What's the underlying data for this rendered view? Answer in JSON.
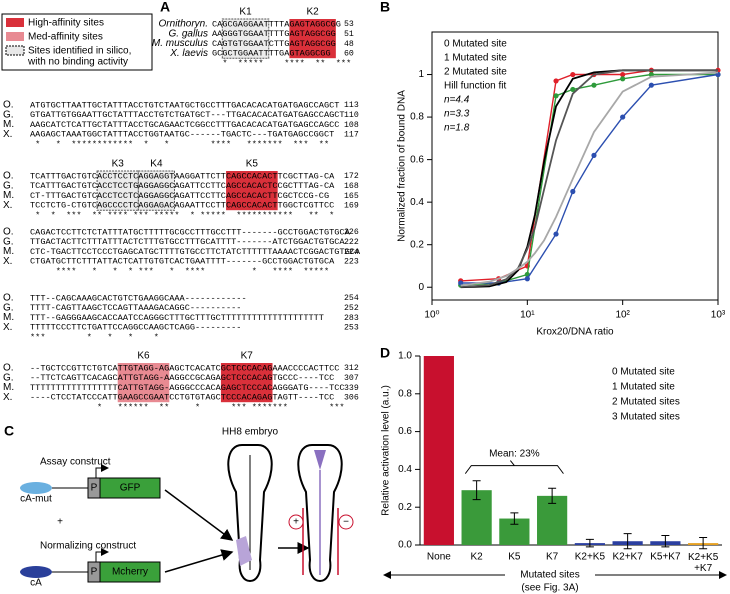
{
  "panel_a": {
    "label": "A",
    "legend": [
      "High-affinity sites",
      "Med-affinity sites",
      [
        "Sites identified in silico,",
        "with no binding activity"
      ]
    ],
    "header_species": [
      "Ornithoryn.",
      "G. gallus",
      "M. musculus",
      "X. laevis"
    ],
    "species": [
      "O.",
      "G.",
      "M.",
      "X."
    ],
    "sites": [
      "K1",
      "K2",
      "K3",
      "K4",
      "K5",
      "K6",
      "K7"
    ],
    "blocks": [
      {
        "rows": [
          {
            "seq": "CAGCGAGGAATTTTAGAGTAGGCGG",
            "pos": 53
          },
          {
            "seq": "AAGGGTGGAATTTTGAGTAGGCGG",
            "pos": 51
          },
          {
            "seq": "CAGTGTGGAATCTTGAGTAGGCGG",
            "pos": 48
          },
          {
            "seq": "GCGCTGGAATTTTGAGTAGGCGG",
            "pos": 60
          }
        ],
        "stars": "  *  *****    ****  **  ***"
      },
      {
        "rows": [
          {
            "seq": "ATGTGCTTAATTGCTATTTACCTGTCTAATGCTGCCTTTGACACACATGATGAGCCAGCT",
            "pos": 113
          },
          {
            "seq": "GTGATTGTGGAATTGCTATTTACCTGTCTGATGCT---TTGACACACATGATGAGCCAGCT",
            "pos": 110
          },
          {
            "seq": "AAGCATCTCATTGCTATTTACCTGCAGAACTCGGCCTTTGACACACATGATGAGCCAGCC",
            "pos": 108
          },
          {
            "seq": "AAGAGCTAAATGGCTATTTACCTGGTAATGC------TGACTC---TGATGAGCCGGCT",
            "pos": 117
          }
        ],
        "stars": " *   *  ************  *   *        ****   *******  ***  **"
      },
      {
        "rows": [
          {
            "seq": "TCATTTGACTGTCACCTCCTCAGGAGGTAAGGATTCTTCAGCCACACTTCGCTTAG-CA",
            "pos": 172
          },
          {
            "seq": "TCATTTGACTGTCACCTCCTGAGGAGGCAGATTCCTTCAGCCACACTCCGCTTTAG-CA",
            "pos": 168
          },
          {
            "seq": "CT-TTTGACTGTCACCTCCTCAGGAGGCAGATTCCTTCAGCCACACTTCGCTCCG-CG",
            "pos": 165
          },
          {
            "seq": "TCCTCTG-CTGTCAGCCCCTCAGGAGACAGAATTCCTTCAGCCACACTTGGCTCGTTCC",
            "pos": 169
          }
        ],
        "stars": " *  *  ***  ** **** *** *****  * *****  ***********   **  *"
      },
      {
        "rows": [
          {
            "seq": "CAGACTCCTTCTCTATTTATGCTTTTTGCGCCTTTGCCTTT-------GCCTGGACTGTGCA",
            "pos": 226
          },
          {
            "seq": "TTGACTACTTCTTTATTTACTCTTTGTGCCTTTGCATTTT-------ATCTGGACTGTGCA",
            "pos": 222
          },
          {
            "seq": "CTC-TGACTTCCTCCCTGAGCATGCTTTTGTGCCTTCTATCTTTTTTAAAACTCGGACTGTGCA",
            "pos": 224
          },
          {
            "seq": "CTGATGCTTCTTTATTACTCATTGTGTCACTGAATTTT-------GCCTGGACTGTGCA",
            "pos": 223
          }
        ],
        "stars": "     ****   *   *  * ***   *  ****         *   ****  *****"
      },
      {
        "rows": [
          {
            "seq": "TTT--CAGCAAAGCACTGTCTGAAGGCAAA------------",
            "pos": 254
          },
          {
            "seq": "TTTT-CAGTTAAGCTCCAGTTAAAGACAGGC----------",
            "pos": 252
          },
          {
            "seq": "TTT--GAGGGAAGCACCAATCCAGGGCTTTGCTTTGCTTTTTTTTTTTTTTTTTTTT",
            "pos": 283
          },
          {
            "seq": "TTTTTCCCTTCTGATTCCAGGCCAAGCTCAGG---------",
            "pos": 253
          }
        ],
        "stars": "***        *   *   *    *"
      },
      {
        "rows": [
          {
            "seq": "--TGCTCCGTTCTGTCATTGTAGG-AGAGCTCACATCGCTCCCACAGAAACCCCACTTCC",
            "pos": 312
          },
          {
            "seq": "--TTCTCAGTTCACAGCATTGTAGG-AAGGCCGCAGAGCTCCCACAGTGCCC----TCC",
            "pos": 307
          },
          {
            "seq": "TTTTTTTTTTTTTTTTTCATTGTAGG-AGGGCCCACAGAGCTCCCACAGGGATG----TCC",
            "pos": 339
          },
          {
            "seq": "----CTCCTATCCCATTGAAGCCGAATCCTGTGTAGCTCCCACAGAGTAGTT----TCC",
            "pos": 306
          }
        ],
        "stars": "             *   ******  **     *      *** *******        ***"
      }
    ]
  },
  "panel_c": {
    "label": "C",
    "embryo": "HH8 embryo",
    "assay": "Assay construct",
    "normalizing": "Normalizing construct",
    "plus": "+",
    "cA_mut": "cA-mut",
    "cA": "cA",
    "promoter": "P",
    "gfp": "GFP",
    "mcherry": "Mcherry",
    "minus": "−"
  },
  "chart_data": [
    {
      "type": "line",
      "panel_label": "B",
      "xlabel": "Krox20/DNA ratio",
      "ylabel": "Normalized fraction of bound DNA",
      "log_x": true,
      "xlim": [
        1,
        1000
      ],
      "xticks": [
        {
          "value": 1,
          "label": "10⁰"
        },
        {
          "value": 10,
          "label": "10¹"
        },
        {
          "value": 100,
          "label": "10²"
        },
        {
          "value": 1000,
          "label": "10³"
        }
      ],
      "ylim": [
        -0.06,
        1.2
      ],
      "yticks": [
        0,
        0.2,
        0.4,
        0.6,
        0.8,
        1
      ],
      "fit_label": "Hill function fit",
      "series": [
        {
          "name": "0 Mutated site",
          "color": "#e0202a",
          "markers": true,
          "x": [
            2,
            5,
            10,
            20,
            30,
            50,
            100,
            200,
            1000
          ],
          "values": [
            0.03,
            0.04,
            0.1,
            0.97,
            1.0,
            1.0,
            1.0,
            1.02,
            1.02
          ]
        },
        {
          "name": "1 Mutated site",
          "color": "#2e9a3a",
          "markers": true,
          "x": [
            2,
            5,
            10,
            20,
            30,
            50,
            100,
            200,
            1000
          ],
          "values": [
            0.01,
            0.02,
            0.06,
            0.9,
            0.93,
            0.95,
            0.98,
            1.0,
            1.0
          ]
        },
        {
          "name": "2 Mutated site",
          "color": "#2c4fb0",
          "markers": true,
          "x": [
            2,
            5,
            10,
            20,
            30,
            50,
            100,
            200,
            1000
          ],
          "values": [
            0.02,
            0.02,
            0.04,
            0.25,
            0.45,
            0.62,
            0.8,
            0.95,
            1.0
          ]
        },
        {
          "name": "n=4.4",
          "color": "#000000",
          "markers": false,
          "x": [
            2,
            4,
            6,
            8,
            10,
            12,
            15,
            20,
            30,
            50,
            100,
            200,
            500,
            1000
          ],
          "values": [
            0.0,
            0.004,
            0.024,
            0.08,
            0.19,
            0.34,
            0.59,
            0.85,
            0.98,
            1.01,
            1.02,
            1.02,
            1.02,
            1.02
          ]
        },
        {
          "name": "n=3.3",
          "color": "#555555",
          "markers": false,
          "x": [
            2,
            4,
            6,
            8,
            10,
            12,
            15,
            20,
            30,
            50,
            100,
            200,
            500,
            1000
          ],
          "values": [
            0.001,
            0.01,
            0.038,
            0.09,
            0.18,
            0.28,
            0.46,
            0.69,
            0.91,
            1.0,
            1.02,
            1.02,
            1.02,
            1.02
          ]
        },
        {
          "name": "n=1.8",
          "color": "#a8a8a8",
          "markers": false,
          "x": [
            2,
            4,
            6,
            8,
            10,
            12,
            15,
            20,
            30,
            50,
            100,
            200,
            500,
            1000
          ],
          "values": [
            0.008,
            0.026,
            0.053,
            0.087,
            0.12,
            0.16,
            0.22,
            0.33,
            0.51,
            0.73,
            0.92,
            0.99,
            1.0,
            1.01
          ]
        }
      ]
    },
    {
      "type": "bar",
      "panel_label": "D",
      "ylabel": "Relative activation level (a.u.)",
      "xlabel": "Mutated sites",
      "xnote": "(see Fig. 3A)",
      "categories": [
        "None",
        "K2",
        "K5",
        "K7",
        "K2+K5",
        "K2+K7",
        "K5+K7",
        "K2+K5\n+K7"
      ],
      "values": [
        1.0,
        0.29,
        0.14,
        0.26,
        0.01,
        0.02,
        0.02,
        0.01
      ],
      "errors": [
        null,
        0.05,
        0.03,
        0.04,
        0.02,
        0.04,
        0.03,
        0.03
      ],
      "colors": [
        "#c8102e",
        "#3a9a3a",
        "#3a9a3a",
        "#3a9a3a",
        "#2b3fa0",
        "#2b3fa0",
        "#2b3fa0",
        "#e6a020"
      ],
      "legend": [
        {
          "name": "0 Mutated site",
          "color": "#c8102e"
        },
        {
          "name": "1 Mutated site",
          "color": "#3a9a3a"
        },
        {
          "name": "2 Mutated sites",
          "color": "#2b3fa0"
        },
        {
          "name": "3 Mutated sites",
          "color": "#e6a020"
        }
      ],
      "annotation": "Mean: 23%",
      "ylim": [
        0,
        1
      ],
      "yticks": [
        {
          "value": 0,
          "label": "0.0"
        },
        0.2,
        0.4,
        0.6,
        0.8,
        {
          "value": 1,
          "label": "1.0"
        }
      ]
    }
  ]
}
